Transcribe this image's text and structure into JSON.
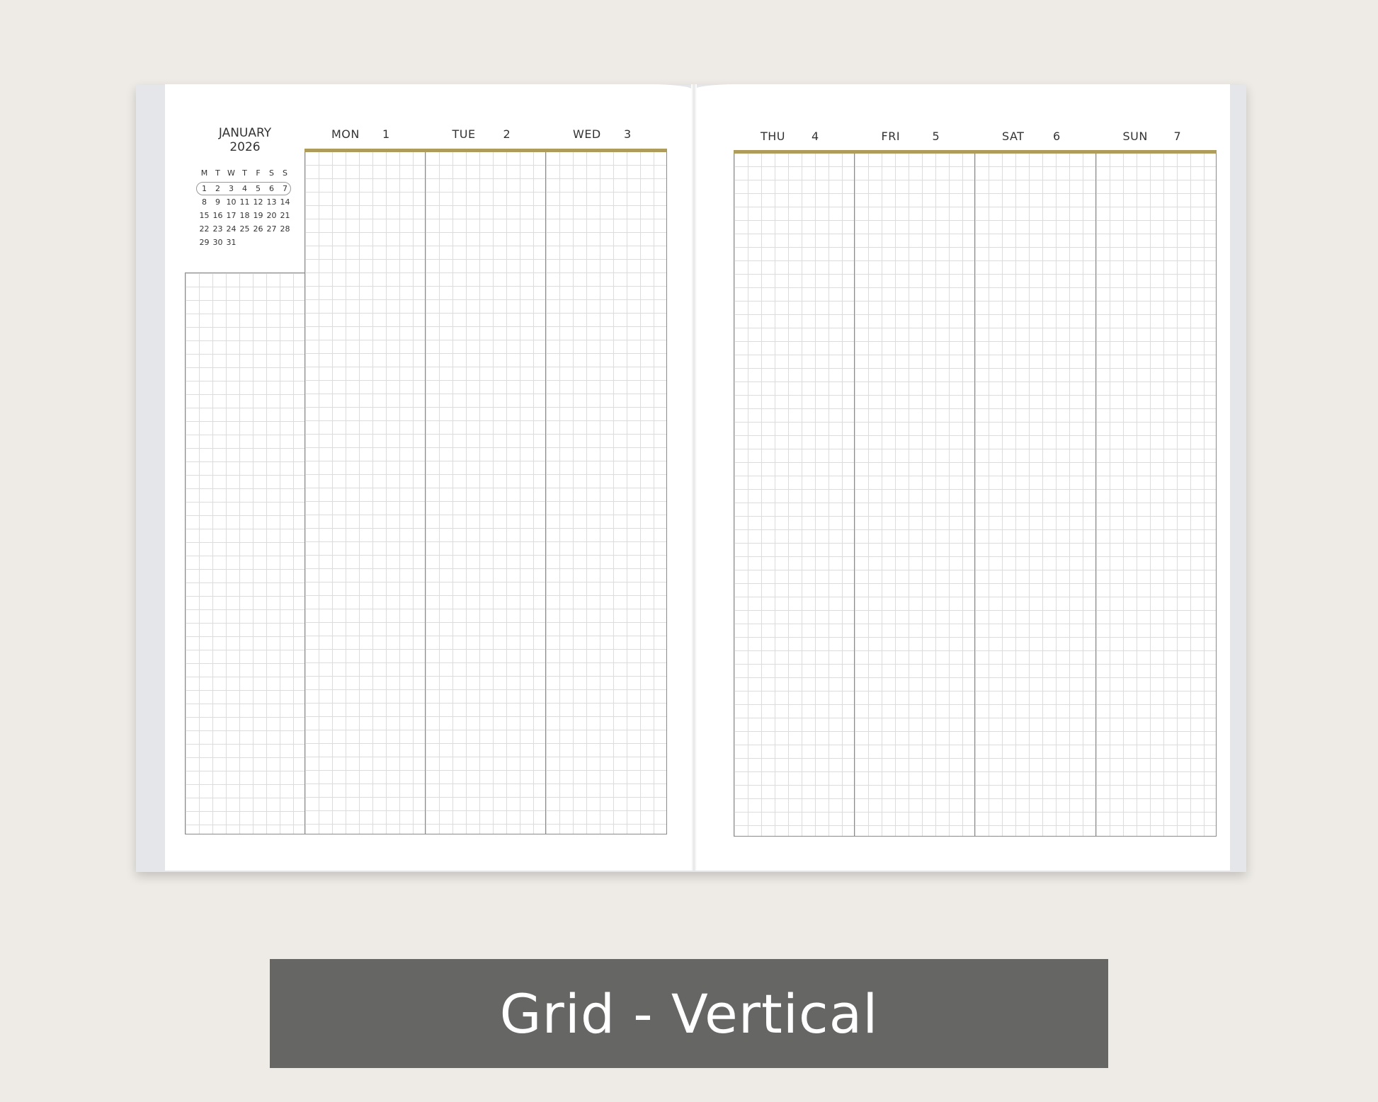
{
  "planner": {
    "month": "JANUARY",
    "year": "2026",
    "mini_calendar": {
      "weekdays": [
        "M",
        "T",
        "W",
        "T",
        "F",
        "S",
        "S"
      ],
      "weeks": [
        [
          "1",
          "2",
          "3",
          "4",
          "5",
          "6",
          "7"
        ],
        [
          "8",
          "9",
          "10",
          "11",
          "12",
          "13",
          "14"
        ],
        [
          "15",
          "16",
          "17",
          "18",
          "19",
          "20",
          "21"
        ],
        [
          "22",
          "23",
          "24",
          "25",
          "26",
          "27",
          "28"
        ],
        [
          "29",
          "30",
          "31"
        ]
      ],
      "highlighted_week": 0
    },
    "left_days": [
      {
        "name": "MON",
        "num": "1"
      },
      {
        "name": "TUE",
        "num": "2"
      },
      {
        "name": "WED",
        "num": "3"
      }
    ],
    "right_days": [
      {
        "name": "THU",
        "num": "4"
      },
      {
        "name": "FRI",
        "num": "5"
      },
      {
        "name": "SAT",
        "num": "6"
      },
      {
        "name": "SUN",
        "num": "7"
      }
    ],
    "accent_color": "#ae9c5d"
  },
  "caption": "Grid - Vertical"
}
